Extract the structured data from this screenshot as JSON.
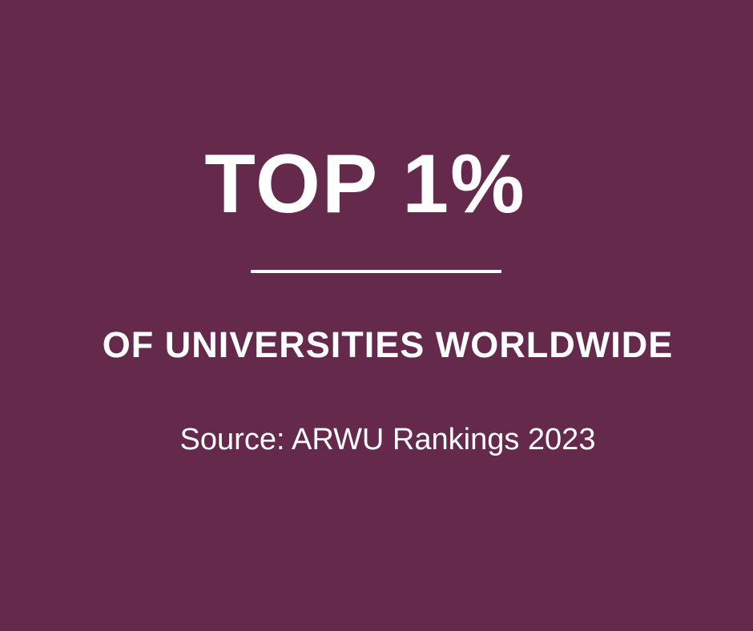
{
  "headline": "TOP 1%",
  "subheadline": "OF UNIVERSITIES WORLDWIDE",
  "source": "Source: ARWU Rankings 2023",
  "colors": {
    "background": "#652a4b",
    "text": "#ffffff"
  }
}
